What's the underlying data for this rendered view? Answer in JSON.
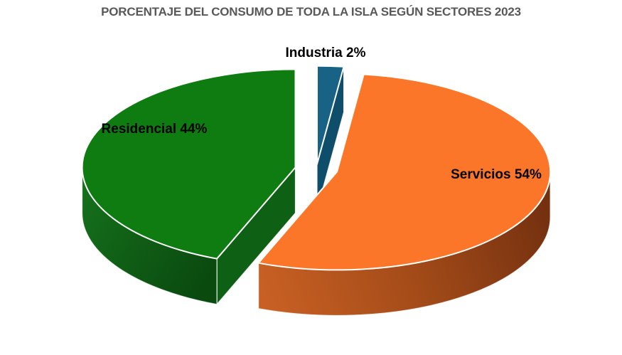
{
  "page": {
    "background": "#ffffff"
  },
  "chart_data": {
    "type": "pie",
    "style": "3d-exploded",
    "title": "PORCENTAJE DEL CONSUMO DE TODA LA ISLA SEGÚN SECTORES 2023",
    "title_color": "#58595b",
    "direction": "clockwise",
    "start_angle_deg": -90,
    "total": 100,
    "unit": "%",
    "label_format": "{label} {value}%",
    "label_text_color": "#000000",
    "edge_stroke_color": "#ffffff",
    "legend": "none",
    "slices": [
      {
        "label": "Industria",
        "value": 2,
        "display_label": "Industria 2%",
        "color_top": "#176285",
        "color_side": "#0f4e6b"
      },
      {
        "label": "Servicios",
        "value": 54,
        "display_label": "Servicios 54%",
        "color_top": "#fb7628",
        "color_side_dark": "#6e2d0e",
        "color_side_light": "#c86024"
      },
      {
        "label": "Residencial",
        "value": 44,
        "display_label": "Residencial 44%",
        "color_top": "#0e7c11",
        "color_side_dark": "#0a4a0f",
        "color_side_light": "#15701c",
        "color_cut_face": "#0e6015"
      }
    ]
  }
}
